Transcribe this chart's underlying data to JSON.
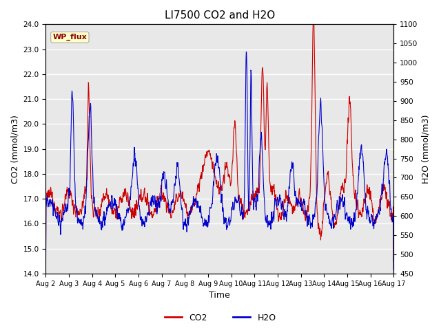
{
  "title": "LI7500 CO2 and H2O",
  "xlabel": "Time",
  "ylabel_left": "CO2 (mmol/m3)",
  "ylabel_right": "H2O (mmol/m3)",
  "annotation": "WP_flux",
  "annotation_color": "#8B0000",
  "annotation_bg": "#FFFFCC",
  "annotation_border": "#AAAAAA",
  "co2_color": "#CC0000",
  "h2o_color": "#0000CC",
  "co2_lw": 0.8,
  "h2o_lw": 0.8,
  "ylim_left": [
    14.0,
    24.0
  ],
  "ylim_right": [
    450,
    1100
  ],
  "yticks_left": [
    14.0,
    15.0,
    16.0,
    17.0,
    18.0,
    19.0,
    20.0,
    21.0,
    22.0,
    23.0,
    24.0
  ],
  "yticks_right": [
    450,
    500,
    550,
    600,
    650,
    700,
    750,
    800,
    850,
    900,
    950,
    1000,
    1050,
    1100
  ],
  "xtick_labels": [
    "Aug 2",
    "Aug 3",
    "Aug 4",
    "Aug 5",
    "Aug 6",
    "Aug 7",
    "Aug 8",
    "Aug 9",
    "Aug 10",
    "Aug 11",
    "Aug 12",
    "Aug 13",
    "Aug 14",
    "Aug 15",
    "Aug 16",
    "Aug 17"
  ],
  "bg_color": "#E8E8E8",
  "grid_color": "#FFFFFF",
  "fig_bg": "#FFFFFF",
  "title_fontsize": 11,
  "axis_label_fontsize": 9,
  "tick_fontsize": 7.5,
  "legend_fontsize": 9
}
